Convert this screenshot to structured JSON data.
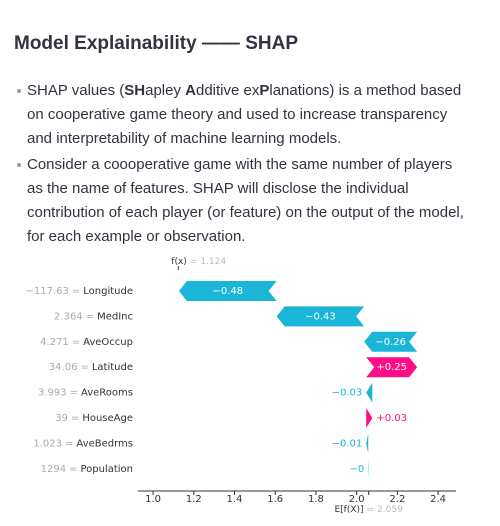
{
  "header": {
    "title": "Model Explainability —— SHAP"
  },
  "bullets": [
    [
      "SHAP values (",
      "SH",
      "apley ",
      "A",
      "dditive ex",
      "P",
      "lanations) is a method based on cooperative game theory and used to increase transparency and interpretability of machine learning models."
    ],
    [
      "Consider a coooperative game with the same number of players as the name of features. SHAP will disclose the individual contribution of each player (or feature) on the output of the model, for each example or observation."
    ]
  ],
  "chart_data": {
    "type": "waterfall",
    "categories": [
      "Longitude",
      "MedInc",
      "AveOccup",
      "Latitude",
      "AveRooms",
      "HouseAge",
      "AveBedrms",
      "Population"
    ],
    "feature_values": [
      "−117.63",
      "2.364",
      "4.271",
      "34.06",
      "3.993",
      "39",
      "1.023",
      "1294"
    ],
    "separator": "=",
    "values": [
      -0.48,
      -0.43,
      -0.26,
      0.25,
      -0.03,
      0.03,
      -0.01,
      -0.002
    ],
    "value_labels": [
      "−0.48",
      "−0.43",
      "−0.26",
      "+0.25",
      "−0.03",
      "+0.03",
      "−0.01",
      "−0"
    ],
    "fx_label": "f(x)",
    "fx": 1.124,
    "fx_text": "1.124",
    "base_label": "E[f(X)]",
    "base_value": 2.059,
    "base_text": "2.059",
    "positive_color": "#ff0d87",
    "negative_color": "#1bb5d8",
    "xlim": [
      0.926,
      2.488
    ],
    "xticks": [
      {
        "value": 1.0,
        "label": "1.0"
      },
      1.2,
      1.4,
      1.6,
      1.8,
      {
        "value": 2.0,
        "label": "2.0"
      },
      2.2,
      2.4
    ]
  }
}
